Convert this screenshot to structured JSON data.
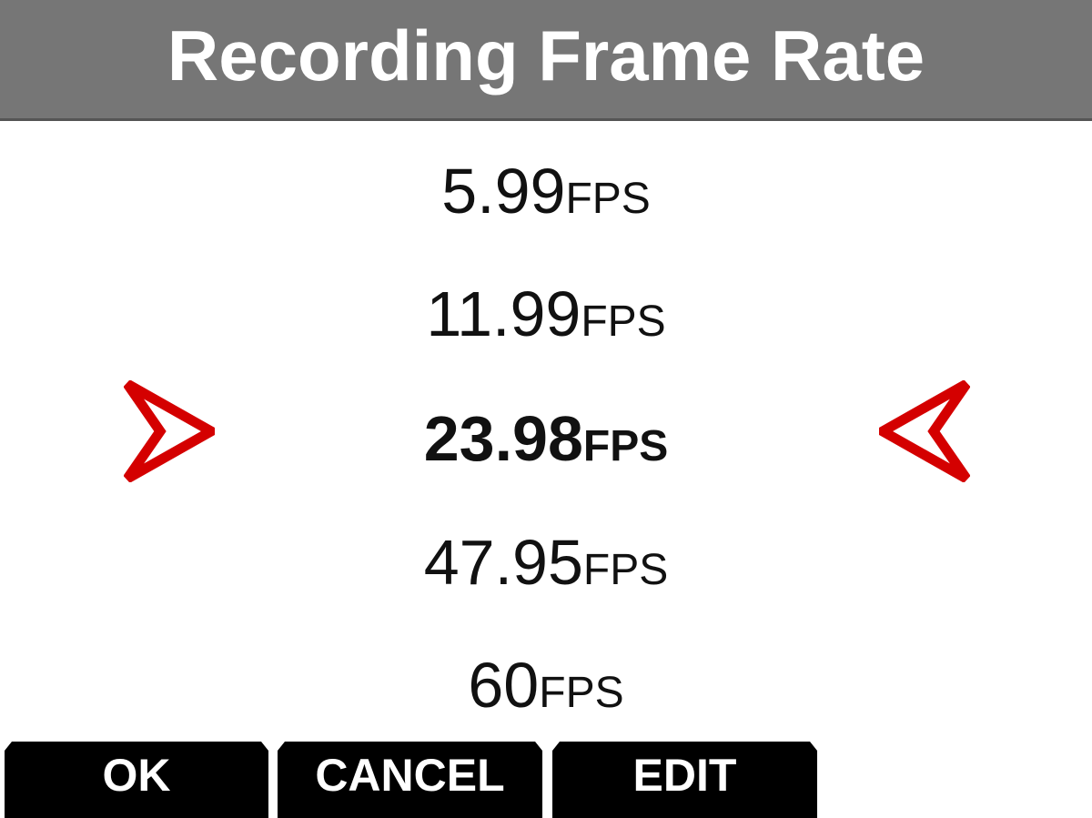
{
  "header": {
    "title": "Recording Frame Rate"
  },
  "options": [
    {
      "value": "5.99",
      "unit": "FPS"
    },
    {
      "value": "11.99",
      "unit": "FPS"
    },
    {
      "value": "23.98",
      "unit": "FPS",
      "selected": true
    },
    {
      "value": "47.95",
      "unit": "FPS"
    },
    {
      "value": "60",
      "unit": "FPS"
    }
  ],
  "buttons": {
    "ok": "OK",
    "cancel": "CANCEL",
    "edit": "EDIT"
  },
  "colors": {
    "header": "#767676",
    "selector_arrow": "#d40000",
    "button": "#000000"
  },
  "icons": {
    "left": "arrow-right-icon",
    "right": "arrow-left-icon"
  }
}
